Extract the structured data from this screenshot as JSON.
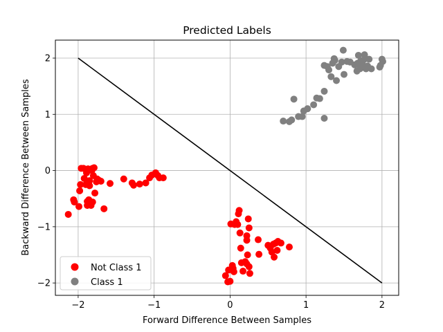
{
  "chart_data": {
    "type": "scatter",
    "title": "Predicted Labels",
    "xlabel": "Forward Difference Between Samples",
    "ylabel": "Backward Difference Between Samples",
    "xlim": [
      -2.3,
      2.22
    ],
    "ylim": [
      -2.22,
      2.32
    ],
    "xticks": [
      -2,
      -1,
      0,
      1,
      2
    ],
    "yticks": [
      -2,
      -1,
      0,
      1,
      2
    ],
    "xtick_labels": [
      "−2",
      "−1",
      "0",
      "1",
      "2"
    ],
    "ytick_labels": [
      "−2",
      "−1",
      "0",
      "1",
      "2"
    ],
    "grid": true,
    "legend_position": "lower-left",
    "line": {
      "x": [
        -2,
        2
      ],
      "y": [
        2,
        -2
      ],
      "color": "#000000"
    },
    "series": [
      {
        "name": "Not Class 1",
        "color": "#ff0000",
        "points": [
          [
            -2.13,
            -0.78
          ],
          [
            -2.06,
            -0.52
          ],
          [
            -2.05,
            -0.56
          ],
          [
            -1.99,
            -0.64
          ],
          [
            -1.98,
            -0.36
          ],
          [
            -1.97,
            -0.25
          ],
          [
            -1.96,
            0.04
          ],
          [
            -1.93,
            0.04
          ],
          [
            -1.92,
            -0.14
          ],
          [
            -1.9,
            -0.25
          ],
          [
            -1.89,
            -0.04
          ],
          [
            -1.88,
            -0.55
          ],
          [
            -1.88,
            -0.62
          ],
          [
            -1.87,
            0.03
          ],
          [
            -1.86,
            -0.59
          ],
          [
            -1.86,
            -0.52
          ],
          [
            -1.85,
            -0.18
          ],
          [
            -1.85,
            -0.27
          ],
          [
            -1.83,
            -0.62
          ],
          [
            -1.82,
            0.0
          ],
          [
            -1.81,
            0.04
          ],
          [
            -1.81,
            -0.56
          ],
          [
            -1.8,
            -0.09
          ],
          [
            -1.79,
            0.05
          ],
          [
            -1.78,
            -0.4
          ],
          [
            -1.76,
            -0.2
          ],
          [
            -1.75,
            -0.15
          ],
          [
            -1.73,
            -0.17
          ],
          [
            -1.7,
            -0.19
          ],
          [
            -1.66,
            -0.68
          ],
          [
            -1.58,
            -0.23
          ],
          [
            -1.4,
            -0.15
          ],
          [
            -1.29,
            -0.22
          ],
          [
            -1.27,
            -0.26
          ],
          [
            -1.19,
            -0.24
          ],
          [
            -1.11,
            -0.22
          ],
          [
            -1.06,
            -0.13
          ],
          [
            -1.03,
            -0.08
          ],
          [
            -0.98,
            -0.04
          ],
          [
            -0.95,
            -0.09
          ],
          [
            -0.93,
            -0.13
          ],
          [
            -0.88,
            -0.13
          ],
          [
            -0.06,
            -1.87
          ],
          [
            -0.03,
            -1.98
          ],
          [
            -0.02,
            -1.77
          ],
          [
            0.0,
            -1.97
          ],
          [
            0.01,
            -0.95
          ],
          [
            0.03,
            -1.69
          ],
          [
            0.04,
            -1.74
          ],
          [
            0.05,
            -1.8
          ],
          [
            0.06,
            -0.96
          ],
          [
            0.08,
            -0.91
          ],
          [
            0.1,
            -0.96
          ],
          [
            0.11,
            -0.77
          ],
          [
            0.12,
            -0.71
          ],
          [
            0.13,
            -1.11
          ],
          [
            0.14,
            -1.38
          ],
          [
            0.15,
            -1.64
          ],
          [
            0.17,
            -1.79
          ],
          [
            0.2,
            -1.62
          ],
          [
            0.22,
            -1.66
          ],
          [
            0.22,
            -1.24
          ],
          [
            0.22,
            -1.16
          ],
          [
            0.23,
            -1.5
          ],
          [
            0.24,
            -0.86
          ],
          [
            0.25,
            -1.02
          ],
          [
            0.25,
            -1.71
          ],
          [
            0.26,
            -1.83
          ],
          [
            0.37,
            -1.23
          ],
          [
            0.38,
            -1.49
          ],
          [
            0.5,
            -1.33
          ],
          [
            0.53,
            -1.38
          ],
          [
            0.55,
            -1.45
          ],
          [
            0.57,
            -1.31
          ],
          [
            0.58,
            -1.54
          ],
          [
            0.6,
            -1.29
          ],
          [
            0.62,
            -1.42
          ],
          [
            0.63,
            -1.26
          ],
          [
            0.67,
            -1.29
          ],
          [
            0.78,
            -1.36
          ]
        ]
      },
      {
        "name": "Class 1",
        "color": "#808080",
        "points": [
          [
            0.7,
            0.88
          ],
          [
            0.78,
            0.87
          ],
          [
            0.81,
            0.9
          ],
          [
            0.84,
            1.27
          ],
          [
            0.9,
            0.96
          ],
          [
            0.95,
            0.96
          ],
          [
            0.97,
            1.06
          ],
          [
            1.02,
            1.1
          ],
          [
            1.1,
            1.17
          ],
          [
            1.14,
            1.29
          ],
          [
            1.18,
            1.28
          ],
          [
            1.24,
            1.41
          ],
          [
            1.24,
            1.87
          ],
          [
            1.24,
            0.93
          ],
          [
            1.28,
            1.85
          ],
          [
            1.3,
            1.79
          ],
          [
            1.33,
            1.67
          ],
          [
            1.35,
            1.91
          ],
          [
            1.37,
            1.99
          ],
          [
            1.38,
            1.96
          ],
          [
            1.4,
            1.6
          ],
          [
            1.43,
            1.85
          ],
          [
            1.47,
            1.93
          ],
          [
            1.49,
            2.14
          ],
          [
            1.5,
            1.71
          ],
          [
            1.54,
            1.94
          ],
          [
            1.58,
            1.93
          ],
          [
            1.64,
            1.88
          ],
          [
            1.67,
            1.77
          ],
          [
            1.68,
            1.91
          ],
          [
            1.69,
            2.05
          ],
          [
            1.71,
            1.81
          ],
          [
            1.72,
            1.95
          ],
          [
            1.73,
            1.83
          ],
          [
            1.75,
            1.87
          ],
          [
            1.76,
            1.97
          ],
          [
            1.77,
            2.06
          ],
          [
            1.79,
            1.81
          ],
          [
            1.81,
            1.86
          ],
          [
            1.83,
            1.98
          ],
          [
            1.86,
            1.81
          ],
          [
            1.97,
            1.84
          ],
          [
            1.98,
            1.87
          ],
          [
            2.0,
            1.98
          ],
          [
            2.01,
            1.94
          ]
        ]
      }
    ]
  }
}
